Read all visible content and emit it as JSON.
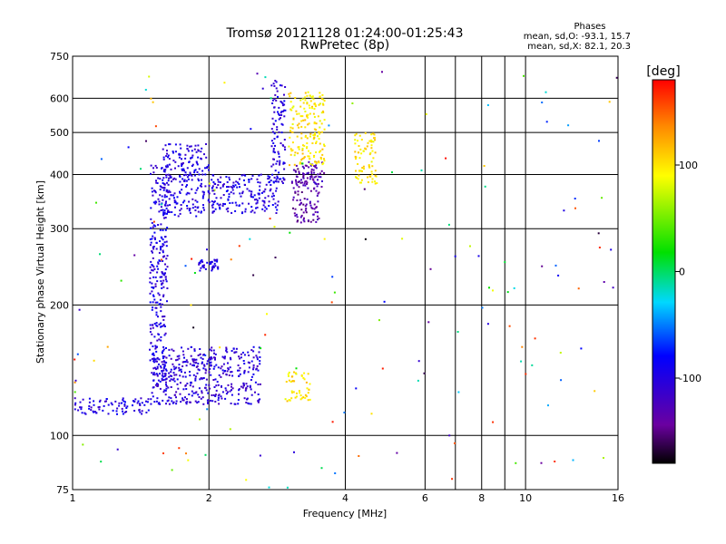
{
  "header": {
    "title": "Tromsø 20121128 01:24:00-01:25:43",
    "subtitle": "RwPretec (8p)"
  },
  "stats": {
    "heading": "Phases",
    "line_o": "mean, sd,O: -93.1, 15.7",
    "line_x": "mean, sd,X: 82.1, 20.3"
  },
  "colorbar": {
    "label": "[deg]",
    "tick_labels": [
      "100",
      "0",
      "-100"
    ],
    "tick_values": [
      100,
      0,
      -100
    ],
    "range": [
      -180,
      180
    ],
    "colormap": "rainbow (black-purple-blue-cyan-green-yellow-red)"
  },
  "chart_data": {
    "type": "scatter",
    "title": "Tromsø 20121128 01:24:00-01:25:43",
    "subtitle": "RwPretec (8p)",
    "xlabel": "Frequency [MHz]",
    "ylabel": "Stationary phase Virtual Height [km]",
    "x_scale": "log",
    "y_scale": "log",
    "xlim": [
      1,
      16
    ],
    "ylim": [
      75,
      750
    ],
    "x_ticks": [
      1,
      2,
      4,
      6,
      8,
      10,
      16
    ],
    "y_ticks": [
      75,
      100,
      200,
      300,
      400,
      500,
      600,
      750
    ],
    "grid": true,
    "color_variable": "phase [deg]",
    "series": [
      {
        "points": [
          {
            "x_range": [
              1.0,
              1.5
            ],
            "y_range": [
              112,
              122
            ],
            "phase_mean": -100
          },
          {
            "x_range": [
              1.5,
              2.6
            ],
            "y_range": [
              118,
              160
            ],
            "phase_mean": -105
          },
          {
            "x_range": [
              1.48,
              1.62
            ],
            "y_range": [
              125,
              420
            ],
            "phase_mean": -100
          },
          {
            "x_range": [
              1.58,
              2.0
            ],
            "y_range": [
              320,
              470
            ],
            "phase_mean": -100
          },
          {
            "x_range": [
              2.0,
              2.85
            ],
            "y_range": [
              325,
              400
            ],
            "phase_mean": -100
          },
          {
            "x_range": [
              2.75,
              2.95
            ],
            "y_range": [
              380,
              660
            ],
            "phase_mean": -100
          },
          {
            "x_range": [
              1.9,
              2.1
            ],
            "y_range": [
              240,
              255
            ],
            "phase_mean": -100
          },
          {
            "x_range": [
              3.05,
              3.5
            ],
            "y_range": [
              310,
              420
            ],
            "phase_mean": -135
          },
          {
            "x_range": [
              3.2,
              3.6
            ],
            "y_range": [
              370,
              430
            ],
            "phase_mean": -130
          },
          {
            "x_range": [
              3.0,
              3.6
            ],
            "y_range": [
              420,
              620
            ],
            "phase_mean": 100
          },
          {
            "x_range": [
              4.2,
              4.7
            ],
            "y_range": [
              380,
              500
            ],
            "phase_mean": 100
          },
          {
            "x_range": [
              2.95,
              3.35
            ],
            "y_range": [
              120,
              140
            ],
            "phase_mean": 100
          },
          {
            "x_range": [
              1.0,
              16.0
            ],
            "y_range": [
              75,
              700
            ],
            "phase_mean": 0
          }
        ]
      }
    ]
  }
}
